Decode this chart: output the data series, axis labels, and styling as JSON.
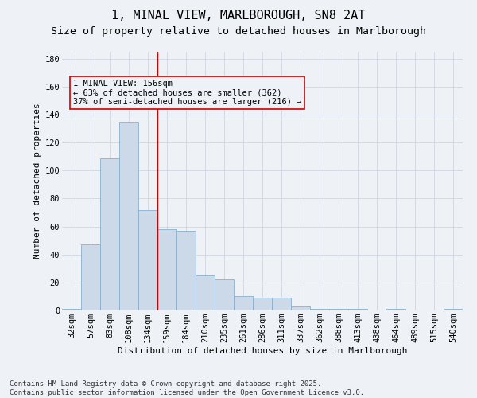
{
  "title": "1, MINAL VIEW, MARLBOROUGH, SN8 2AT",
  "subtitle": "Size of property relative to detached houses in Marlborough",
  "xlabel": "Distribution of detached houses by size in Marlborough",
  "ylabel": "Number of detached properties",
  "bar_color": "#ccd9e8",
  "bar_edge_color": "#8ab0cc",
  "background_color": "#eef2f7",
  "grid_color": "#c8d0dc",
  "categories": [
    "32sqm",
    "57sqm",
    "83sqm",
    "108sqm",
    "134sqm",
    "159sqm",
    "184sqm",
    "210sqm",
    "235sqm",
    "261sqm",
    "286sqm",
    "311sqm",
    "337sqm",
    "362sqm",
    "388sqm",
    "413sqm",
    "438sqm",
    "464sqm",
    "489sqm",
    "515sqm",
    "540sqm"
  ],
  "values": [
    1,
    47,
    109,
    135,
    72,
    58,
    57,
    25,
    22,
    10,
    9,
    9,
    3,
    1,
    1,
    1,
    0,
    1,
    0,
    0,
    1
  ],
  "vline_x": 4.5,
  "vline_color": "#cc0000",
  "annotation_text": "1 MINAL VIEW: 156sqm\n← 63% of detached houses are smaller (362)\n37% of semi-detached houses are larger (216) →",
  "annotation_box_edgecolor": "#cc0000",
  "footnote": "Contains HM Land Registry data © Crown copyright and database right 2025.\nContains public sector information licensed under the Open Government Licence v3.0.",
  "ylim": [
    0,
    185
  ],
  "yticks": [
    0,
    20,
    40,
    60,
    80,
    100,
    120,
    140,
    160,
    180
  ],
  "title_fontsize": 11,
  "subtitle_fontsize": 9.5,
  "axis_label_fontsize": 8,
  "tick_fontsize": 7.5,
  "annotation_fontsize": 7.5,
  "footnote_fontsize": 6.5
}
